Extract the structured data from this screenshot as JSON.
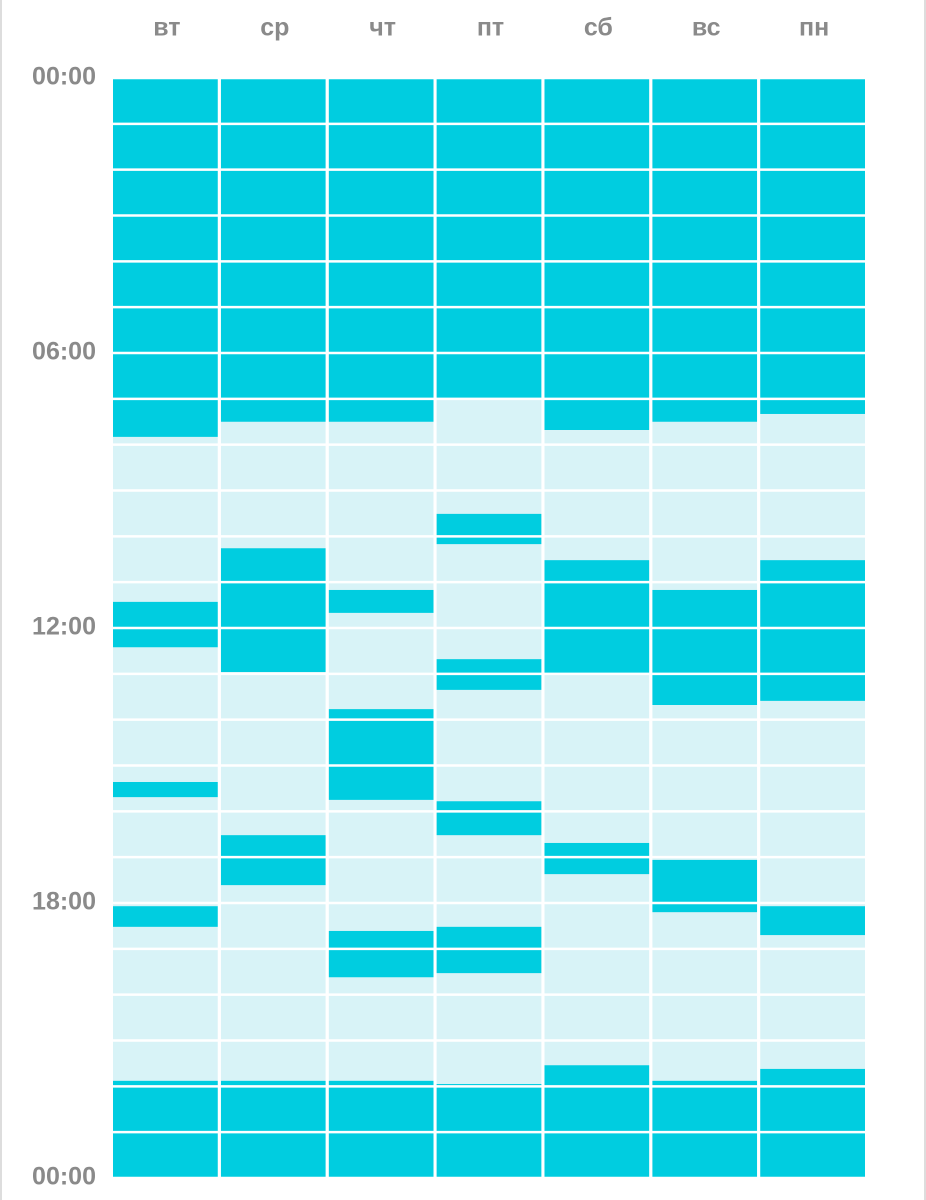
{
  "chart_data": {
    "type": "schedule",
    "categories": [
      "вт",
      "ср",
      "чт",
      "пт",
      "сб",
      "вс",
      "пн"
    ],
    "intervals": [
      [
        [
          0,
          7.83
        ],
        [
          11.43,
          12.42
        ],
        [
          15.36,
          15.69
        ],
        [
          18.07,
          18.52
        ],
        [
          21.88,
          24
        ]
      ],
      [
        [
          0,
          7.5
        ],
        [
          10.26,
          12.96
        ],
        [
          16.52,
          17.61
        ],
        [
          21.88,
          24
        ]
      ],
      [
        [
          0,
          7.5
        ],
        [
          11.17,
          11.67
        ],
        [
          13.77,
          15.75
        ],
        [
          18.61,
          19.62
        ],
        [
          21.88,
          24
        ]
      ],
      [
        [
          0,
          6.98
        ],
        [
          9.51,
          10.17
        ],
        [
          12.68,
          13.35
        ],
        [
          15.78,
          16.52
        ],
        [
          18.52,
          19.53
        ],
        [
          21.95,
          24
        ]
      ],
      [
        [
          0,
          7.68
        ],
        [
          10.52,
          12.98
        ],
        [
          16.69,
          17.37
        ],
        [
          21.54,
          24
        ]
      ],
      [
        [
          0,
          7.5
        ],
        [
          11.17,
          13.68
        ],
        [
          17.06,
          18.2
        ],
        [
          21.88,
          24
        ]
      ],
      [
        [
          0,
          7.33
        ],
        [
          10.52,
          13.59
        ],
        [
          18.07,
          18.7
        ],
        [
          21.62,
          24
        ]
      ]
    ],
    "color": "#00cde0",
    "background_color": "#d8f3f7",
    "ylim": [
      0,
      24
    ],
    "yticks": [
      {
        "value": 0,
        "label": "00:00"
      },
      {
        "value": 6,
        "label": "06:00"
      },
      {
        "value": 12,
        "label": "12:00"
      },
      {
        "value": 18,
        "label": "18:00"
      },
      {
        "value": 24,
        "label": "00:00"
      }
    ],
    "minor_yticks": [
      1,
      2,
      3,
      4,
      5,
      7,
      8,
      9,
      10,
      11,
      13,
      14,
      15,
      16,
      17,
      19,
      20,
      21,
      22,
      23
    ]
  }
}
